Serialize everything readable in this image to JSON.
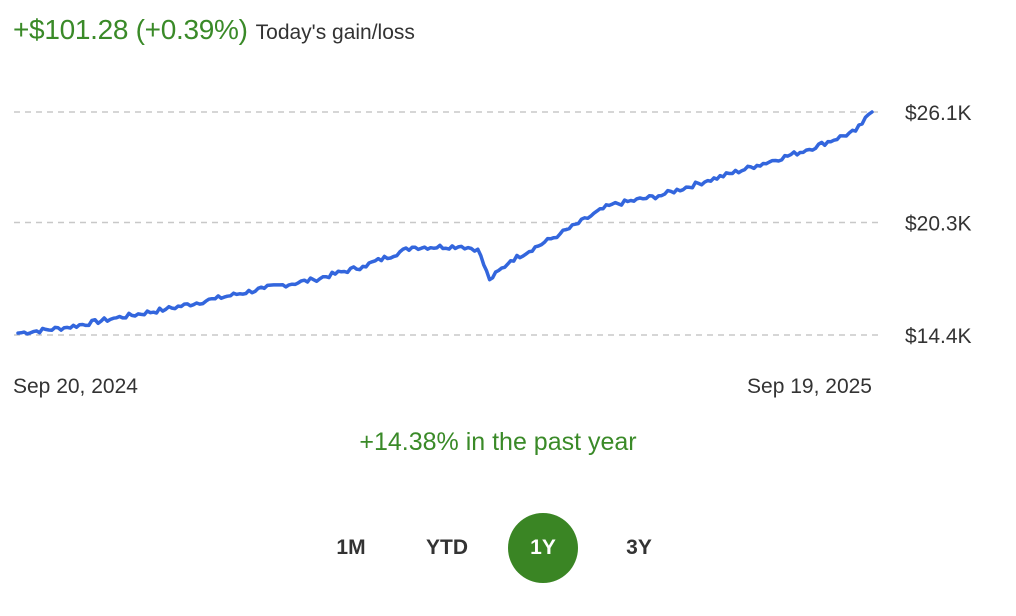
{
  "header": {
    "gain_value": "+$101.28 (+0.39%)",
    "gain_label": "Today's gain/loss"
  },
  "chart_data": {
    "type": "line",
    "title": "",
    "xlabel": "",
    "ylabel": "",
    "x_labels": [
      "Sep 20, 2024",
      "Sep 19, 2025"
    ],
    "y_tick_labels": [
      "$26.1K",
      "$20.3K",
      "$14.4K"
    ],
    "y_ticks": [
      26100,
      20300,
      14400
    ],
    "ylim": [
      14400,
      26100
    ],
    "grid": true,
    "gridline_style": "dashed",
    "line_color": "#3366dd",
    "series": [
      {
        "x": [
          "2024-09-20",
          "2024-10-11",
          "2024-11-01",
          "2024-11-22",
          "2024-12-13",
          "2025-01-03",
          "2025-01-24",
          "2025-02-14",
          "2025-03-07",
          "2025-03-28",
          "2025-04-04",
          "2025-04-09",
          "2025-04-18",
          "2025-05-09",
          "2025-05-30",
          "2025-06-20",
          "2025-07-11",
          "2025-08-01",
          "2025-08-22",
          "2025-09-12",
          "2025-09-19"
        ],
        "values": [
          14500,
          14800,
          15300,
          15750,
          16300,
          16850,
          17300,
          18000,
          19000,
          19050,
          18900,
          17300,
          18300,
          19700,
          21200,
          21700,
          22500,
          23300,
          24100,
          25100,
          26100
        ]
      }
    ]
  },
  "summary": {
    "period_change": "+14.38% in the past year"
  },
  "range_selector": {
    "options": [
      "1M",
      "YTD",
      "1Y",
      "3Y"
    ],
    "selected": "1Y"
  },
  "colors": {
    "gain_green": "#3a8a28",
    "active_button": "#3a8524",
    "line": "#3366dd",
    "gridline": "#c8c8c8"
  }
}
